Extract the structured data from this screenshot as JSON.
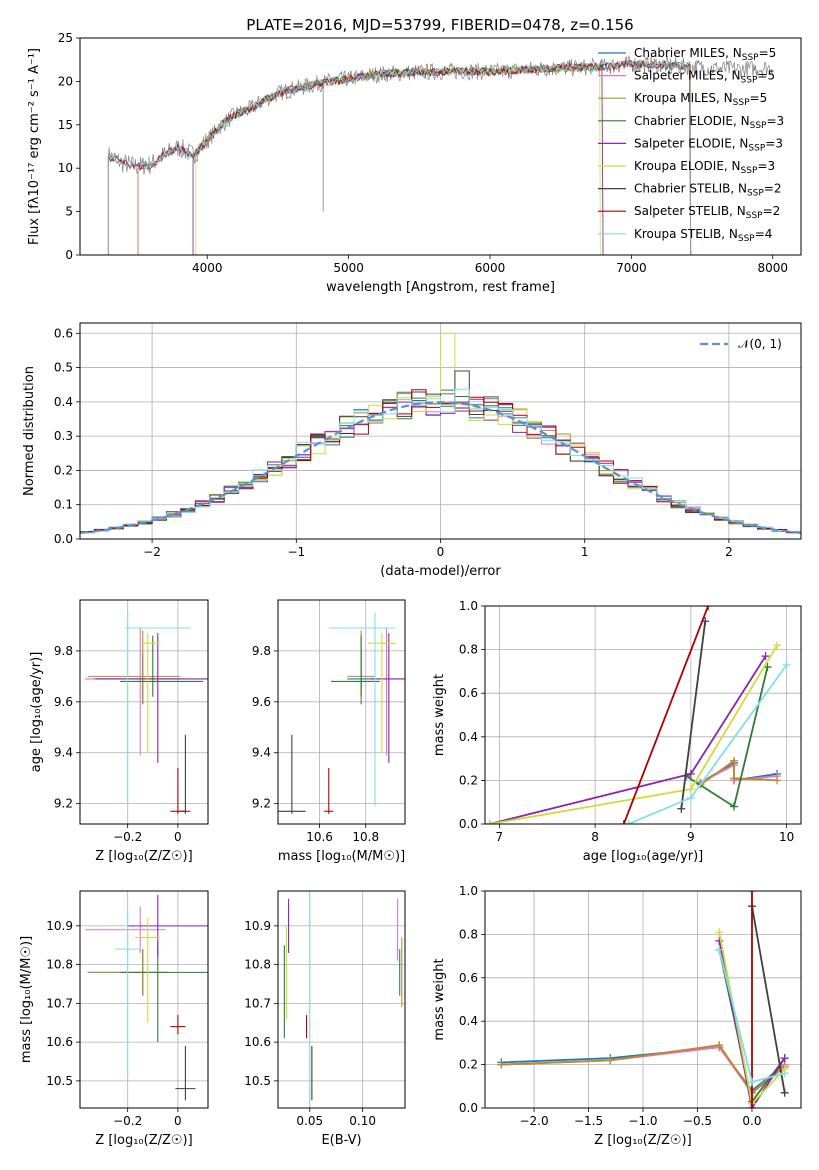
{
  "figure_title": "PLATE=2016, MJD=53799, FIBERID=0478, z=0.156",
  "colors": {
    "chabrier_miles": "#1f77b4",
    "salpeter_miles": "#e377c2",
    "kroupa_miles": "#bc8a2c",
    "chabrier_elodie": "#2e7d32",
    "salpeter_elodie": "#8e24aa",
    "kroupa_elodie": "#cddc39",
    "chabrier_stelib": "#404040",
    "salpeter_stelib": "#b00000",
    "kroupa_stelib": "#80deea",
    "normal": "#5b8fd6",
    "data": "#808080"
  },
  "chart_data": [
    {
      "id": "spectrum",
      "type": "line",
      "title": "PLATE=2016, MJD=53799, FIBERID=0478, z=0.156",
      "xlabel": "wavelength [Angstrom, rest frame]",
      "ylabel": "Flux [fλ10⁻¹⁷ erg cm⁻² s⁻¹ A⁻¹]",
      "xlim": [
        3100,
        8200
      ],
      "ylim": [
        0,
        25
      ],
      "xticks": [
        4000,
        5000,
        6000,
        7000,
        8000
      ],
      "yticks": [
        0,
        5,
        10,
        15,
        20,
        25
      ],
      "grid": false,
      "legend_position": "top-right",
      "continuum": {
        "x": [
          3300,
          3400,
          3500,
          3600,
          3700,
          3800,
          3900,
          4000,
          4100,
          4200,
          4300,
          4400,
          4500,
          4600,
          4800,
          5000,
          5200,
          5400,
          5600,
          5800,
          6000,
          6200,
          6400,
          6600,
          6800,
          7000,
          7200,
          7400,
          7600,
          7800,
          8000
        ],
        "y": [
          11.5,
          10.6,
          10.2,
          10.4,
          11.6,
          12.4,
          11.5,
          13.2,
          15.0,
          16.2,
          16.8,
          17.8,
          18.6,
          19.1,
          19.8,
          20.3,
          20.8,
          21.0,
          21.1,
          21.2,
          21.1,
          21.3,
          21.5,
          21.6,
          21.7,
          22.0,
          21.9,
          21.7,
          21.5,
          21.4,
          21.6
        ]
      },
      "series": [
        {
          "name": "Chabrier MILES, N_SSP=5",
          "legend_main": "Chabrier MILES, N",
          "legend_sub": "SSP",
          "legend_tail": "=5",
          "color_key": "chabrier_miles",
          "range": [
            3510,
            7420
          ]
        },
        {
          "name": "Salpeter MILES, N_SSP=5",
          "legend_main": "Salpeter MILES, N",
          "legend_sub": "SSP",
          "legend_tail": "=5",
          "color_key": "salpeter_miles",
          "range": [
            3510,
            7420
          ]
        },
        {
          "name": "Kroupa MILES, N_SSP=5",
          "legend_main": "Kroupa MILES, N",
          "legend_sub": "SSP",
          "legend_tail": "=5",
          "color_key": "kroupa_miles",
          "range": [
            3510,
            7420
          ]
        },
        {
          "name": "Chabrier ELODIE, N_SSP=3",
          "legend_main": "Chabrier ELODIE, N",
          "legend_sub": "SSP",
          "legend_tail": "=3",
          "color_key": "chabrier_elodie",
          "range": [
            3900,
            6800
          ]
        },
        {
          "name": "Salpeter ELODIE, N_SSP=3",
          "legend_main": "Salpeter ELODIE, N",
          "legend_sub": "SSP",
          "legend_tail": "=3",
          "color_key": "salpeter_elodie",
          "range": [
            3900,
            6800
          ]
        },
        {
          "name": "Kroupa ELODIE, N_SSP=3",
          "legend_main": "Kroupa ELODIE, N",
          "legend_sub": "SSP",
          "legend_tail": "=3",
          "color_key": "kroupa_elodie",
          "range": [
            3920,
            6780
          ]
        },
        {
          "name": "Chabrier STELIB, N_SSP=2",
          "legend_main": "Chabrier STELIB, N",
          "legend_sub": "SSP",
          "legend_tail": "=2",
          "color_key": "chabrier_stelib",
          "range": [
            3300,
            7420
          ]
        },
        {
          "name": "Salpeter STELIB, N_SSP=2",
          "legend_main": "Salpeter STELIB, N",
          "legend_sub": "SSP",
          "legend_tail": "=2",
          "color_key": "salpeter_stelib",
          "range": [
            3300,
            7420
          ]
        },
        {
          "name": "Kroupa STELIB, N_SSP=4",
          "legend_main": "Kroupa STELIB, N",
          "legend_sub": "SSP",
          "legend_tail": "=4",
          "color_key": "kroupa_stelib",
          "range": [
            3300,
            7420
          ]
        }
      ]
    },
    {
      "id": "residuals",
      "type": "histogram",
      "xlabel": "(data-model)/error",
      "ylabel": "Normed distribution",
      "xlim": [
        -2.5,
        2.5
      ],
      "ylim": [
        0,
        0.63
      ],
      "xticks": [
        -2,
        -1,
        0,
        1,
        2
      ],
      "yticks": [
        0.0,
        0.1,
        0.2,
        0.3,
        0.4,
        0.5,
        0.6
      ],
      "grid": true,
      "legend_position": "top-right",
      "legend_label": "𝒩(0, 1)",
      "bin_width": 0.1,
      "special_bins": {
        "0.0": 0.6,
        "0.1": 0.49
      }
    },
    {
      "id": "age_vs_z",
      "type": "errorbar",
      "xlabel": "Z [log₁₀(Z/Z☉)]",
      "ylabel": "age  [log₁₀(age/yr)]",
      "xlim": [
        -0.39,
        0.12
      ],
      "ylim": [
        9.12,
        10.0
      ],
      "xticks": [
        -0.2,
        0.0
      ],
      "yticks": [
        9.2,
        9.4,
        9.6,
        9.8
      ],
      "grid": true,
      "points": [
        {
          "c": "chabrier_miles",
          "x": -0.14,
          "xe": [
            0.2,
            0.15
          ],
          "y": 9.69,
          "ye": [
            0.1,
            0.1
          ]
        },
        {
          "c": "salpeter_miles",
          "x": -0.15,
          "xe": [
            0.22,
            0.15
          ],
          "y": 9.69,
          "ye": [
            0.3,
            0.2
          ]
        },
        {
          "c": "kroupa_miles",
          "x": -0.14,
          "xe": [
            0.22,
            0.15
          ],
          "y": 9.7,
          "ye": [
            0.1,
            0.18
          ]
        },
        {
          "c": "chabrier_elodie",
          "x": -0.1,
          "xe": [
            0.13,
            0.2
          ],
          "y": 9.68,
          "ye": [
            0.06,
            0.18
          ]
        },
        {
          "c": "salpeter_elodie",
          "x": -0.08,
          "xe": [
            0.25,
            0.2
          ],
          "y": 9.69,
          "ye": [
            0.33,
            0.18
          ]
        },
        {
          "c": "kroupa_elodie",
          "x": -0.12,
          "xe": [
            0.02,
            0.05
          ],
          "y": 9.83,
          "ye": [
            0.43,
            0.04
          ]
        },
        {
          "c": "chabrier_stelib",
          "x": 0.03,
          "xe": [
            0.02,
            0.02
          ],
          "y": 9.17,
          "ye": [
            0.01,
            0.3
          ]
        },
        {
          "c": "salpeter_stelib",
          "x": 0.0,
          "xe": [
            0.03,
            0.03
          ],
          "y": 9.17,
          "ye": [
            0.01,
            0.17
          ]
        },
        {
          "c": "kroupa_stelib",
          "x": -0.2,
          "xe": [
            0.01,
            0.25
          ],
          "y": 9.89,
          "ye": [
            0.7,
            0.06
          ]
        }
      ]
    },
    {
      "id": "age_vs_mass",
      "type": "errorbar",
      "xlabel": "mass [log₁₀(M/M☉)]",
      "ylabel": "",
      "xlim": [
        10.42,
        10.97
      ],
      "ylim": [
        9.12,
        10.0
      ],
      "xticks": [
        10.6,
        10.8
      ],
      "yticks": [
        9.2,
        9.4,
        9.6,
        9.8
      ],
      "grid": true,
      "points": [
        {
          "c": "chabrier_miles",
          "x": 10.78,
          "xe": [
            0.06,
            0.06
          ],
          "y": 9.69,
          "ye": [
            0.1,
            0.1
          ]
        },
        {
          "c": "salpeter_miles",
          "x": 10.89,
          "xe": [
            0.06,
            0.06
          ],
          "y": 9.69,
          "ye": [
            0.3,
            0.2
          ]
        },
        {
          "c": "kroupa_miles",
          "x": 10.78,
          "xe": [
            0.06,
            0.06
          ],
          "y": 9.7,
          "ye": [
            0.1,
            0.18
          ]
        },
        {
          "c": "chabrier_elodie",
          "x": 10.78,
          "xe": [
            0.13,
            0.08
          ],
          "y": 9.68,
          "ye": [
            0.06,
            0.18
          ]
        },
        {
          "c": "salpeter_elodie",
          "x": 10.9,
          "xe": [
            0.08,
            0.08
          ],
          "y": 9.69,
          "ye": [
            0.33,
            0.18
          ]
        },
        {
          "c": "kroupa_elodie",
          "x": 10.87,
          "xe": [
            0.06,
            0.06
          ],
          "y": 9.83,
          "ye": [
            0.43,
            0.04
          ]
        },
        {
          "c": "chabrier_stelib",
          "x": 10.48,
          "xe": [
            0.06,
            0.06
          ],
          "y": 9.17,
          "ye": [
            0.01,
            0.3
          ]
        },
        {
          "c": "salpeter_stelib",
          "x": 10.64,
          "xe": [
            0.02,
            0.02
          ],
          "y": 9.17,
          "ye": [
            0.01,
            0.17
          ]
        },
        {
          "c": "kroupa_stelib",
          "x": 10.84,
          "xe": [
            0.2,
            0.09
          ],
          "y": 9.89,
          "ye": [
            0.7,
            0.06
          ]
        }
      ]
    },
    {
      "id": "weight_vs_age",
      "type": "line",
      "xlabel": "age  [log₁₀(age/yr)]",
      "ylabel": "mass weight",
      "xlim": [
        6.85,
        10.15
      ],
      "ylim": [
        0,
        1
      ],
      "xticks": [
        7,
        8,
        9,
        10
      ],
      "yticks": [
        0.0,
        0.2,
        0.4,
        0.6,
        0.8,
        1.0
      ],
      "grid": true,
      "series": [
        {
          "c": "chabrier_miles",
          "x": [
            9.1,
            9.45,
            9.45,
            9.9
          ],
          "y": [
            0.19,
            0.28,
            0.2,
            0.23
          ]
        },
        {
          "c": "salpeter_miles",
          "x": [
            9.1,
            9.45,
            9.45,
            9.9
          ],
          "y": [
            0.19,
            0.27,
            0.2,
            0.22
          ]
        },
        {
          "c": "kroupa_miles",
          "x": [
            9.1,
            9.45,
            9.45,
            9.9
          ],
          "y": [
            0.18,
            0.29,
            0.21,
            0.2
          ]
        },
        {
          "c": "chabrier_elodie",
          "x": [
            8.95,
            9.45,
            9.8
          ],
          "y": [
            0.22,
            0.08,
            0.72
          ]
        },
        {
          "c": "salpeter_elodie",
          "x": [
            6.9,
            9.0,
            9.78
          ],
          "y": [
            0.0,
            0.23,
            0.77
          ]
        },
        {
          "c": "kroupa_elodie",
          "x": [
            6.9,
            9.0,
            9.9
          ],
          "y": [
            0.0,
            0.16,
            0.82
          ]
        },
        {
          "c": "chabrier_stelib",
          "x": [
            8.9,
            9.15
          ],
          "y": [
            0.07,
            0.93
          ]
        },
        {
          "c": "salpeter_stelib",
          "x": [
            8.3,
            9.18
          ],
          "y": [
            0.0,
            1.0
          ]
        },
        {
          "c": "kroupa_stelib",
          "x": [
            8.35,
            9.0,
            10.0
          ],
          "y": [
            0.0,
            0.12,
            0.73
          ]
        }
      ]
    },
    {
      "id": "mass_vs_z",
      "type": "errorbar",
      "xlabel": "Z [log₁₀(Z/Z☉)]",
      "ylabel": "mass [log₁₀(M/M☉)]",
      "xlim": [
        -0.39,
        0.12
      ],
      "ylim": [
        10.43,
        10.99
      ],
      "xticks": [
        -0.2,
        0.0
      ],
      "yticks": [
        10.5,
        10.6,
        10.7,
        10.8,
        10.9
      ],
      "grid": true,
      "points": [
        {
          "c": "chabrier_miles",
          "x": -0.14,
          "xe": [
            0.22,
            0.1
          ],
          "y": 10.78,
          "ye": [
            0.06,
            0.06
          ]
        },
        {
          "c": "salpeter_miles",
          "x": -0.15,
          "xe": [
            0.22,
            0.1
          ],
          "y": 10.89,
          "ye": [
            0.06,
            0.06
          ]
        },
        {
          "c": "kroupa_miles",
          "x": -0.14,
          "xe": [
            0.22,
            0.1
          ],
          "y": 10.78,
          "ye": [
            0.06,
            0.06
          ]
        },
        {
          "c": "chabrier_elodie",
          "x": -0.08,
          "xe": [
            0.15,
            0.2
          ],
          "y": 10.78,
          "ye": [
            0.18,
            0.08
          ]
        },
        {
          "c": "salpeter_elodie",
          "x": -0.08,
          "xe": [
            0.12,
            0.2
          ],
          "y": 10.9,
          "ye": [
            0.08,
            0.08
          ]
        },
        {
          "c": "kroupa_elodie",
          "x": -0.12,
          "xe": [
            0.05,
            0.05
          ],
          "y": 10.87,
          "ye": [
            0.22,
            0.05
          ]
        },
        {
          "c": "chabrier_stelib",
          "x": 0.03,
          "xe": [
            0.04,
            0.04
          ],
          "y": 10.48,
          "ye": [
            0.03,
            0.11
          ]
        },
        {
          "c": "salpeter_stelib",
          "x": 0.0,
          "xe": [
            0.03,
            0.03
          ],
          "y": 10.64,
          "ye": [
            0.02,
            0.03
          ]
        },
        {
          "c": "kroupa_stelib",
          "x": -0.2,
          "xe": [
            0.05,
            0.05
          ],
          "y": 10.84,
          "ye": [
            0.33,
            0.1
          ]
        }
      ]
    },
    {
      "id": "mass_vs_ebv",
      "type": "errorbar",
      "xlabel": "E(B-V)",
      "ylabel": "",
      "xlim": [
        0.02,
        0.14
      ],
      "ylim": [
        10.43,
        10.99
      ],
      "xticks": [
        0.05,
        0.1
      ],
      "ytick_labels": [
        "10.5",
        "10.6",
        "10.7",
        "10.8",
        "10.9"
      ],
      "xtick_labels": [
        "0.05",
        "0.10"
      ],
      "yticks": [
        10.5,
        10.6,
        10.7,
        10.8,
        10.9
      ],
      "grid": true,
      "points": [
        {
          "c": "chabrier_miles",
          "x": 0.135,
          "y": 10.78,
          "ye": [
            0.06,
            0.06
          ]
        },
        {
          "c": "salpeter_miles",
          "x": 0.133,
          "y": 10.89,
          "ye": [
            0.08,
            0.08
          ]
        },
        {
          "c": "kroupa_miles",
          "x": 0.137,
          "y": 10.78,
          "ye": [
            0.09,
            0.09
          ]
        },
        {
          "c": "chabrier_elodie",
          "x": 0.026,
          "y": 10.73,
          "ye": [
            0.12,
            0.12
          ]
        },
        {
          "c": "salpeter_elodie",
          "x": 0.03,
          "y": 10.9,
          "ye": [
            0.07,
            0.07
          ]
        },
        {
          "c": "kroupa_elodie",
          "x": 0.028,
          "y": 10.78,
          "ye": [
            0.12,
            0.12
          ]
        },
        {
          "c": "chabrier_stelib",
          "x": 0.052,
          "y": 10.52,
          "ye": [
            0.07,
            0.07
          ]
        },
        {
          "c": "salpeter_stelib",
          "x": 0.047,
          "y": 10.64,
          "ye": [
            0.03,
            0.03
          ]
        },
        {
          "c": "kroupa_stelib",
          "x": 0.05,
          "y": 10.7,
          "ye": [
            0.3,
            0.3
          ]
        }
      ]
    },
    {
      "id": "weight_vs_z",
      "type": "line",
      "xlabel": "Z [log₁₀(Z/Z☉)]",
      "ylabel": "mass weight",
      "xlim": [
        -2.45,
        0.45
      ],
      "ylim": [
        0,
        1
      ],
      "xticks": [
        -2.0,
        -1.5,
        -1.0,
        -0.5,
        0.0
      ],
      "xtick_labels": [
        "−2.0",
        "−1.5",
        "−1.0",
        "−0.5",
        "0.0"
      ],
      "yticks": [
        0.0,
        0.2,
        0.4,
        0.6,
        0.8,
        1.0
      ],
      "grid": true,
      "series": [
        {
          "c": "chabrier_miles",
          "x": [
            -2.3,
            -1.3,
            -0.3,
            0.0,
            0.3
          ],
          "y": [
            0.21,
            0.23,
            0.28,
            0.08,
            0.2
          ]
        },
        {
          "c": "salpeter_miles",
          "x": [
            -2.3,
            -1.3,
            -0.3,
            0.0,
            0.3
          ],
          "y": [
            0.2,
            0.22,
            0.28,
            0.07,
            0.2
          ]
        },
        {
          "c": "kroupa_miles",
          "x": [
            -2.3,
            -1.3,
            -0.3,
            0.0,
            0.3
          ],
          "y": [
            0.2,
            0.22,
            0.29,
            0.07,
            0.19
          ]
        },
        {
          "c": "chabrier_elodie",
          "x": [
            -0.3,
            0.0,
            0.3
          ],
          "y": [
            0.73,
            0.03,
            0.23
          ]
        },
        {
          "c": "salpeter_elodie",
          "x": [
            -0.3,
            0.0,
            0.3
          ],
          "y": [
            0.77,
            0.0,
            0.23
          ]
        },
        {
          "c": "kroupa_elodie",
          "x": [
            -0.3,
            0.0,
            0.3
          ],
          "y": [
            0.81,
            0.02,
            0.18
          ]
        },
        {
          "c": "chabrier_stelib",
          "x": [
            0.0,
            0.3
          ],
          "y": [
            0.93,
            0.07
          ]
        },
        {
          "c": "salpeter_stelib",
          "x": [
            0.0,
            0.0
          ],
          "y": [
            1.0,
            0.0
          ]
        },
        {
          "c": "kroupa_stelib",
          "x": [
            -0.3,
            0.0,
            0.3
          ],
          "y": [
            0.73,
            0.12,
            0.16
          ]
        }
      ]
    }
  ]
}
